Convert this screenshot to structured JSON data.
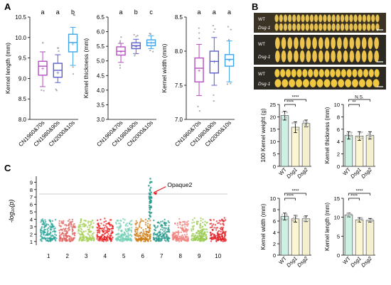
{
  "panels": {
    "A": "A",
    "B": "B",
    "C": "C"
  },
  "panel_a": {
    "groups": [
      "CN1960&70s",
      "CN1980&90s",
      "CN2000&10s"
    ],
    "group_colors": [
      "#b44fc0",
      "#5b5fd0",
      "#41a3e6"
    ]
  },
  "panel_b": {
    "photo_labels": [
      "WT",
      "Dsg-1",
      "WT",
      "Dsg-1",
      "WT",
      "Dsg-1"
    ],
    "genotypes": [
      "WT",
      "Dsg1",
      "Dsg2"
    ],
    "bar_colors": [
      "#ccf0e1",
      "#fcf7d2",
      "#f4efce"
    ]
  },
  "panel_c": {
    "annotation": "Opaque2",
    "ylabel": "-log₁₀(p)",
    "chromosomes": [
      "1",
      "2",
      "3",
      "4",
      "5",
      "6",
      "7",
      "8",
      "9",
      "10"
    ],
    "chrom_colors": [
      "#2ba59a",
      "#e06560",
      "#a8d05a",
      "#e81f22",
      "#72cfb4",
      "#cd7e16",
      "#2c9b8e",
      "#f0807c",
      "#98c94e",
      "#e4232a"
    ]
  },
  "chart_data": [
    {
      "type": "box",
      "panel": "A",
      "ylabel": "Kernel length (mm)",
      "categories": [
        "CN1960&70s",
        "CN1980&90s",
        "CN2000&10s"
      ],
      "ylim": [
        8.0,
        10.5
      ],
      "yticks": [
        "8.0",
        "8.5",
        "9.0",
        "9.5",
        "10.0",
        "10.5"
      ],
      "letters": [
        "a",
        "a",
        "b"
      ],
      "boxes": [
        {
          "whisker_low": 8.8,
          "q1": 9.08,
          "median": 9.3,
          "q3": 9.42,
          "whisker_high": 9.65,
          "mean": 9.25
        },
        {
          "whisker_low": 8.9,
          "q1": 9.03,
          "median": 9.2,
          "q3": 9.37,
          "whisker_high": 9.58,
          "mean": 9.15
        },
        {
          "whisker_low": 9.32,
          "q1": 9.65,
          "median": 9.88,
          "q3": 10.08,
          "whisker_high": 10.25,
          "mean": 9.85
        }
      ]
    },
    {
      "type": "box",
      "panel": "A",
      "ylabel": "Kernel thickness (mm)",
      "categories": [
        "CN1960&70s",
        "CN1980&90s",
        "CN2000&10s"
      ],
      "ylim": [
        3.0,
        6.5
      ],
      "yticks": [
        "3.0",
        "3.5",
        "4.0",
        "4.5",
        "5.0",
        "5.5",
        "6.0",
        "6.5"
      ],
      "letters": [
        "a",
        "b",
        "c"
      ],
      "boxes": [
        {
          "whisker_low": 4.95,
          "q1": 5.2,
          "median": 5.33,
          "q3": 5.48,
          "whisker_high": 5.6,
          "mean": 5.32
        },
        {
          "whisker_low": 5.25,
          "q1": 5.42,
          "median": 5.52,
          "q3": 5.62,
          "whisker_high": 5.74,
          "mean": 5.5
        },
        {
          "whisker_low": 5.42,
          "q1": 5.52,
          "median": 5.62,
          "q3": 5.72,
          "whisker_high": 5.86,
          "mean": 5.62
        }
      ]
    },
    {
      "type": "box",
      "panel": "A",
      "ylabel": "Kernel width (mm)",
      "categories": [
        "CN1960&70s",
        "CN1980&90s",
        "CN2000&10s"
      ],
      "ylim": [
        7.0,
        8.5
      ],
      "yticks": [
        "7.0",
        "7.5",
        "8.0",
        "8.5"
      ],
      "letters": [
        "a",
        "a",
        "a"
      ],
      "boxes": [
        {
          "whisker_low": 7.35,
          "q1": 7.55,
          "median": 7.75,
          "q3": 7.9,
          "whisker_high": 8.1,
          "mean": 7.72
        },
        {
          "whisker_low": 7.5,
          "q1": 7.68,
          "median": 7.85,
          "q3": 8.0,
          "whisker_high": 8.2,
          "mean": 7.85
        },
        {
          "whisker_low": 7.55,
          "q1": 7.78,
          "median": 7.88,
          "q3": 7.95,
          "whisker_high": 8.15,
          "mean": 7.87
        }
      ]
    },
    {
      "type": "bar",
      "panel": "B",
      "ylabel": "100 Kernel weight (g)",
      "categories": [
        "WT",
        "Dsg1",
        "Dsg2"
      ],
      "values": [
        20.5,
        15.8,
        17.3
      ],
      "errors": [
        1.8,
        2.2,
        1.4
      ],
      "ylim": [
        0,
        25
      ],
      "yticks": [
        "0",
        "5",
        "10",
        "15",
        "20",
        "25"
      ],
      "significance": [
        {
          "pair": [
            "WT",
            "Dsg1"
          ],
          "label": "****"
        },
        {
          "pair": [
            "WT",
            "Dsg2"
          ],
          "label": "****"
        }
      ]
    },
    {
      "type": "bar",
      "panel": "B",
      "ylabel": "Kernel thickness (mm)",
      "categories": [
        "WT",
        "Dsg1",
        "Dsg2"
      ],
      "values": [
        5.0,
        4.9,
        5.0
      ],
      "errors": [
        0.6,
        0.7,
        0.6
      ],
      "ylim": [
        0,
        10
      ],
      "yticks": [
        "0",
        "2",
        "4",
        "6",
        "8",
        "10"
      ],
      "significance": [
        {
          "pair": [
            "WT",
            "Dsg1"
          ],
          "label": "**"
        },
        {
          "pair": [
            "WT",
            "Dsg2"
          ],
          "label": "N.S."
        }
      ]
    },
    {
      "type": "bar",
      "panel": "B",
      "ylabel": "Kernel width (mm)",
      "categories": [
        "WT",
        "Dsg1",
        "Dsg2"
      ],
      "values": [
        6.8,
        6.4,
        6.4
      ],
      "errors": [
        0.6,
        0.6,
        0.5
      ],
      "ylim": [
        0,
        10
      ],
      "yticks": [
        "0",
        "2",
        "4",
        "6",
        "8",
        "10"
      ],
      "significance": [
        {
          "pair": [
            "WT",
            "Dsg1"
          ],
          "label": "****"
        },
        {
          "pair": [
            "WT",
            "Dsg2"
          ],
          "label": "****"
        }
      ]
    },
    {
      "type": "bar",
      "panel": "B",
      "ylabel": "Kernel length (mm)",
      "categories": [
        "WT",
        "Dsg1",
        "Dsg2"
      ],
      "values": [
        10.6,
        9.3,
        9.2
      ],
      "errors": [
        0.5,
        0.6,
        0.5
      ],
      "ylim": [
        0,
        15
      ],
      "yticks": [
        "0",
        "5",
        "10",
        "15"
      ],
      "significance": [
        {
          "pair": [
            "WT",
            "Dsg1"
          ],
          "label": "****"
        },
        {
          "pair": [
            "WT",
            "Dsg2"
          ],
          "label": "****"
        }
      ]
    },
    {
      "type": "scatter",
      "panel": "C",
      "ylabel": "-log₁₀(p)",
      "yticks": [
        "1",
        "2",
        "3",
        "4",
        "5",
        "6",
        "7",
        "8",
        "9"
      ],
      "ylim": [
        0.5,
        9.8
      ],
      "threshold": 7.4,
      "xlabels": [
        "1",
        "2",
        "3",
        "4",
        "5",
        "6",
        "7",
        "8",
        "9",
        "10"
      ],
      "peak": {
        "chromosome": "6",
        "value": 9.5,
        "label": "Opaque2"
      }
    }
  ]
}
